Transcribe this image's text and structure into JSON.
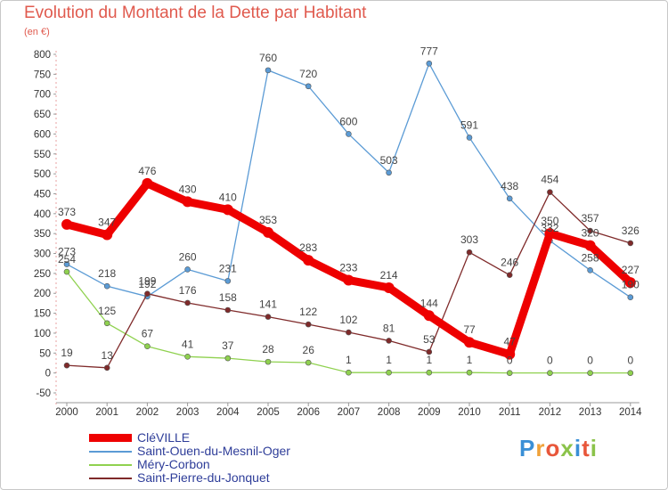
{
  "title": "Evolution du Montant de la Dette par Habitant",
  "subtitle": "(en €)",
  "logo": {
    "text": "Proxiti",
    "letter_colors": [
      "#3a8fd6",
      "#f0a23a",
      "#e8563a",
      "#8bc34a",
      "#3a8fd6",
      "#e8563a",
      "#8bc34a"
    ]
  },
  "chart_data": {
    "type": "line",
    "title": "Evolution du Montant de la Dette par Habitant",
    "subtitle": "(en €)",
    "xlabel": "",
    "ylabel": "",
    "x": [
      "2000",
      "2001",
      "2002",
      "2003",
      "2004",
      "2005",
      "2006",
      "2007",
      "2008",
      "2009",
      "2010",
      "2011",
      "2012",
      "2013",
      "2014"
    ],
    "ylim": [
      -50,
      800
    ],
    "yticks": [
      -50,
      0,
      50,
      100,
      150,
      200,
      250,
      300,
      350,
      400,
      450,
      500,
      550,
      600,
      650,
      700,
      750,
      800
    ],
    "grid": false,
    "legend_position": "bottom",
    "series": [
      {
        "name": "CléVILLE",
        "color": "#ee0000",
        "emphasis": true,
        "values": [
          373,
          347,
          476,
          430,
          410,
          353,
          283,
          233,
          214,
          144,
          77,
          47,
          350,
          320,
          227
        ],
        "labels": [
          "373",
          "347",
          "476",
          "430",
          "410",
          "353",
          "283",
          "233",
          "214",
          "144",
          "77",
          "47",
          "350",
          "320",
          "227"
        ]
      },
      {
        "name": "Saint-Ouen-du-Mesnil-Oger",
        "color": "#5b9bd5",
        "values": [
          273,
          218,
          192,
          260,
          231,
          760,
          720,
          600,
          503,
          777,
          591,
          438,
          332,
          258,
          190
        ],
        "labels": [
          "273",
          "218",
          "192",
          "260",
          "231",
          "760",
          "720",
          "600",
          "503",
          "777",
          "591",
          "438",
          "332",
          "258",
          "190"
        ]
      },
      {
        "name": "Méry-Corbon",
        "color": "#8fd14f",
        "values": [
          254,
          125,
          67,
          41,
          37,
          28,
          26,
          1,
          1,
          1,
          1,
          0,
          0,
          0,
          0
        ],
        "labels": [
          "254",
          "125",
          "67",
          "41",
          "37",
          "28",
          "26",
          "1",
          "1",
          "1",
          "1",
          "0",
          "0",
          "0",
          "0"
        ]
      },
      {
        "name": "Saint-Pierre-du-Jonquet",
        "color": "#7f2a2a",
        "values": [
          19,
          13,
          199,
          176,
          158,
          141,
          122,
          102,
          81,
          53,
          303,
          246,
          454,
          357,
          326
        ],
        "labels": [
          "19",
          "13",
          "199",
          "176",
          "158",
          "141",
          "122",
          "102",
          "81",
          "53",
          "303",
          "246",
          "454",
          "357",
          "326"
        ]
      }
    ]
  }
}
